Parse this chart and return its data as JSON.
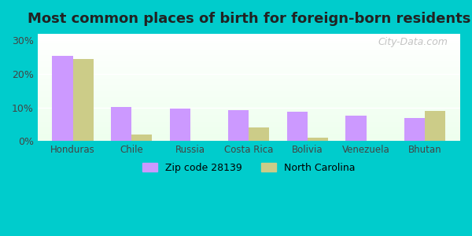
{
  "title": "Most common places of birth for foreign-born residents",
  "categories": [
    "Honduras",
    "Chile",
    "Russia",
    "Costa Rica",
    "Bolivia",
    "Venezuela",
    "Bhutan"
  ],
  "zip_values": [
    25.5,
    10.2,
    9.6,
    9.2,
    8.7,
    7.5,
    7.0
  ],
  "nc_values": [
    24.5,
    2.0,
    0.0,
    4.0,
    1.0,
    0.0,
    9.0
  ],
  "zip_color": "#cc99ff",
  "nc_color": "#cccc88",
  "background_outer": "#00cccc",
  "background_inner_top": "#e8f5e8",
  "background_inner_bottom": "#f5fff5",
  "ylim": [
    0,
    32
  ],
  "yticks": [
    0,
    10,
    20,
    30
  ],
  "ytick_labels": [
    "0%",
    "10%",
    "20%",
    "30%"
  ],
  "legend_zip_label": "Zip code 28139",
  "legend_nc_label": "North Carolina",
  "bar_width": 0.35,
  "watermark": "City-Data.com"
}
